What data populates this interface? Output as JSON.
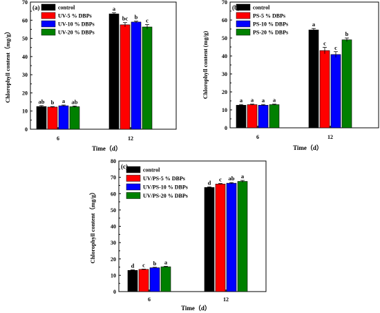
{
  "colors": {
    "control": "#000000",
    "dbp5": "#ff0000",
    "dbp10": "#0000ff",
    "dbp20": "#008000"
  },
  "chart_data": [
    {
      "type": "bar",
      "panel_label": "(a)",
      "xlabel": "Time（d）",
      "ylabel": "Chlorophyll content（mg/g）",
      "ylim": [
        0,
        70
      ],
      "yticks": [
        0,
        10,
        20,
        30,
        40,
        50,
        60,
        70
      ],
      "categories": [
        "6",
        "12"
      ],
      "legend_position": "top-left",
      "series": [
        {
          "name": "control",
          "color": "#000000",
          "values": [
            12.5,
            63.5
          ],
          "errors": [
            0.5,
            0.6
          ],
          "letters": [
            "ab",
            "a"
          ]
        },
        {
          "name": "UV-5 % DBPs",
          "color": "#ff0000",
          "values": [
            12.2,
            57.5
          ],
          "errors": [
            0.3,
            1.2
          ],
          "letters": [
            "b",
            "bc"
          ]
        },
        {
          "name": "UV-10 % DBPs",
          "color": "#0000ff",
          "values": [
            12.9,
            59.0
          ],
          "errors": [
            0.4,
            0.5
          ],
          "letters": [
            "a",
            "b"
          ]
        },
        {
          "name": "UV-20 % DBPs",
          "color": "#008000",
          "values": [
            12.4,
            56.3
          ],
          "errors": [
            0.4,
            1.3
          ],
          "letters": [
            "ab",
            "c"
          ]
        }
      ]
    },
    {
      "type": "bar",
      "panel_label": "(b)",
      "xlabel": "Time（d）",
      "ylabel": "Chlorophyll content (mg/g)",
      "ylim": [
        0,
        70
      ],
      "yticks": [
        0,
        10,
        20,
        30,
        40,
        50,
        60,
        70
      ],
      "categories": [
        "6",
        "12"
      ],
      "legend_position": "top-left",
      "series": [
        {
          "name": "control",
          "color": "#000000",
          "values": [
            12.6,
            54.5
          ],
          "errors": [
            0.4,
            0.8
          ],
          "letters": [
            "a",
            "a"
          ]
        },
        {
          "name": "PS-5 % DBPs",
          "color": "#ff0000",
          "values": [
            12.9,
            43.0
          ],
          "errors": [
            0.3,
            1.8
          ],
          "letters": [
            "a",
            "c"
          ]
        },
        {
          "name": "PS-10 % DBPs",
          "color": "#0000ff",
          "values": [
            12.6,
            40.8
          ],
          "errors": [
            0.4,
            1.6
          ],
          "letters": [
            "a",
            "c"
          ]
        },
        {
          "name": "PS-20 % DBPs",
          "color": "#008000",
          "values": [
            12.9,
            49.0
          ],
          "errors": [
            0.3,
            1.0
          ],
          "letters": [
            "a",
            "b"
          ]
        }
      ]
    },
    {
      "type": "bar",
      "panel_label": "(c)",
      "xlabel": "Time（d）",
      "ylabel": "Chlorophyll content（mg/g）",
      "ylim": [
        0,
        80
      ],
      "yticks": [
        0,
        10,
        20,
        30,
        40,
        50,
        60,
        70,
        80
      ],
      "categories": [
        "6",
        "12"
      ],
      "legend_position": "top-left",
      "series": [
        {
          "name": "control",
          "color": "#000000",
          "values": [
            13.0,
            63.8
          ],
          "errors": [
            0.3,
            0.4
          ],
          "letters": [
            "d",
            "d"
          ]
        },
        {
          "name": "UV/PS-5 % DBPs",
          "color": "#ff0000",
          "values": [
            13.6,
            65.9
          ],
          "errors": [
            0.2,
            0.3
          ],
          "letters": [
            "c",
            "c"
          ]
        },
        {
          "name": "UV/PS-10 % DBPs",
          "color": "#0000ff",
          "values": [
            14.6,
            66.4
          ],
          "errors": [
            0.3,
            0.4
          ],
          "letters": [
            "b",
            "ab"
          ]
        },
        {
          "name": "UV/PS-20 % DBPs",
          "color": "#008000",
          "values": [
            15.2,
            67.5
          ],
          "errors": [
            0.3,
            0.6
          ],
          "letters": [
            "a",
            "a"
          ]
        }
      ]
    }
  ]
}
